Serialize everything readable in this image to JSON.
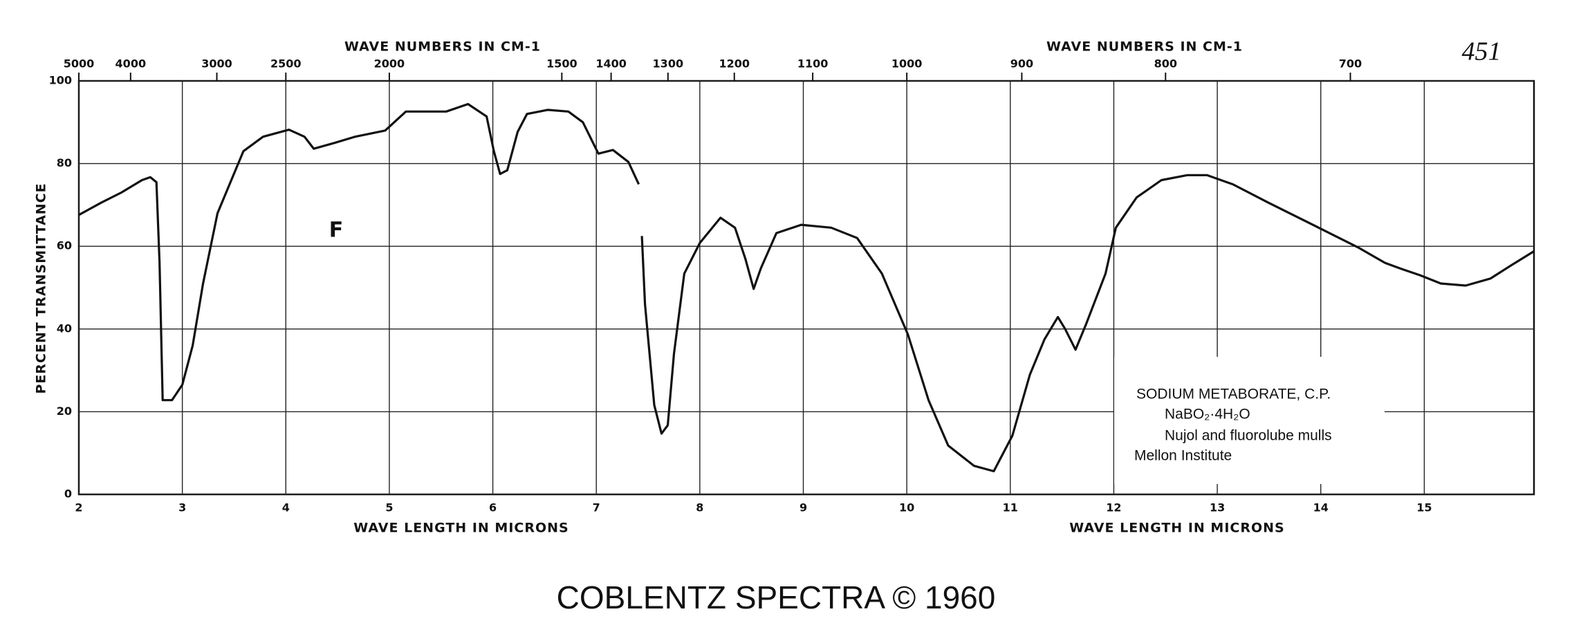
{
  "chart_data": {
    "type": "line",
    "x2_labels": [
      "WAVE NUMBERS IN CM-1",
      "WAVE NUMBERS IN CM-1"
    ],
    "x_labels": [
      "WAVE LENGTH IN MICRONS",
      "WAVE LENGTH IN MICRONS"
    ],
    "y_label": "PERCENT TRANSMITTANCE",
    "x": [
      2.0,
      2.22,
      2.41,
      2.61,
      2.69,
      2.75,
      2.78,
      2.81,
      2.9,
      3.0,
      3.1,
      3.2,
      3.34,
      3.59,
      3.78,
      4.03,
      4.18,
      4.27,
      4.47,
      4.67,
      4.96,
      5.16,
      5.35,
      5.55,
      5.76,
      5.94,
      6.01,
      6.07,
      6.14,
      6.24,
      6.33,
      6.53,
      6.73,
      6.87,
      7.02,
      7.16,
      7.31,
      7.41,
      7.42,
      7.44,
      7.47,
      7.56,
      7.63,
      7.69,
      7.75,
      7.85,
      8.0,
      8.2,
      8.34,
      8.44,
      8.52,
      8.59,
      8.74,
      8.98,
      9.27,
      9.52,
      9.76,
      10.01,
      10.21,
      10.4,
      10.65,
      10.84,
      11.02,
      11.19,
      11.33,
      11.46,
      11.53,
      11.63,
      11.73,
      11.92,
      12.02,
      12.22,
      12.46,
      12.71,
      12.9,
      13.15,
      13.49,
      13.98,
      14.37,
      14.62,
      14.76,
      14.96,
      15.16,
      15.4,
      15.64,
      15.84,
      16.06
    ],
    "values": [
      67.6,
      70.6,
      73,
      76,
      76.7,
      75.5,
      56,
      22.8,
      22.8,
      26.5,
      36,
      51,
      68,
      83,
      86.5,
      88.2,
      86.5,
      83.6,
      85,
      86.5,
      88,
      92.6,
      92.6,
      92.6,
      94.4,
      91.4,
      83,
      77.5,
      78.4,
      87.7,
      92,
      93,
      92.6,
      90,
      82.4,
      83.3,
      80.4,
      75,
      null,
      62.5,
      46,
      21.6,
      14.7,
      16.7,
      34,
      53.4,
      60.8,
      66.9,
      64.5,
      57,
      49.7,
      54.7,
      63.2,
      65.2,
      64.5,
      62,
      53.4,
      38.7,
      22.8,
      11.8,
      6.9,
      5.6,
      14.2,
      29,
      37.5,
      42.9,
      40,
      35,
      41,
      53.4,
      64.5,
      71.8,
      76,
      77.2,
      77.2,
      75,
      70.6,
      64.5,
      59.6,
      56,
      54.7,
      53,
      51,
      50.5,
      52.2,
      55.4,
      58.8
    ],
    "color": "#111111",
    "xlim": [
      2,
      16.06
    ],
    "xticks": [
      2,
      3,
      4,
      5,
      6,
      7,
      8,
      9,
      10,
      11,
      12,
      13,
      14,
      15
    ],
    "ylim": [
      0,
      100
    ],
    "yticks": [
      0,
      20,
      40,
      60,
      80,
      100
    ],
    "x2ticks": [
      5000,
      4000,
      3000,
      2500,
      2000,
      1500,
      1400,
      1300,
      1200,
      1100,
      1000,
      900,
      800,
      700
    ],
    "grid": true,
    "annotations": {
      "page_number": "451",
      "mark": "F",
      "box": [
        "SODIUM METABORATE, C.P.",
        "NaBO₂·4H₂O",
        "Nujol and fluorolube mulls",
        "Mellon Institute"
      ]
    },
    "footer": "COBLENTZ SPECTRA © 1960"
  }
}
